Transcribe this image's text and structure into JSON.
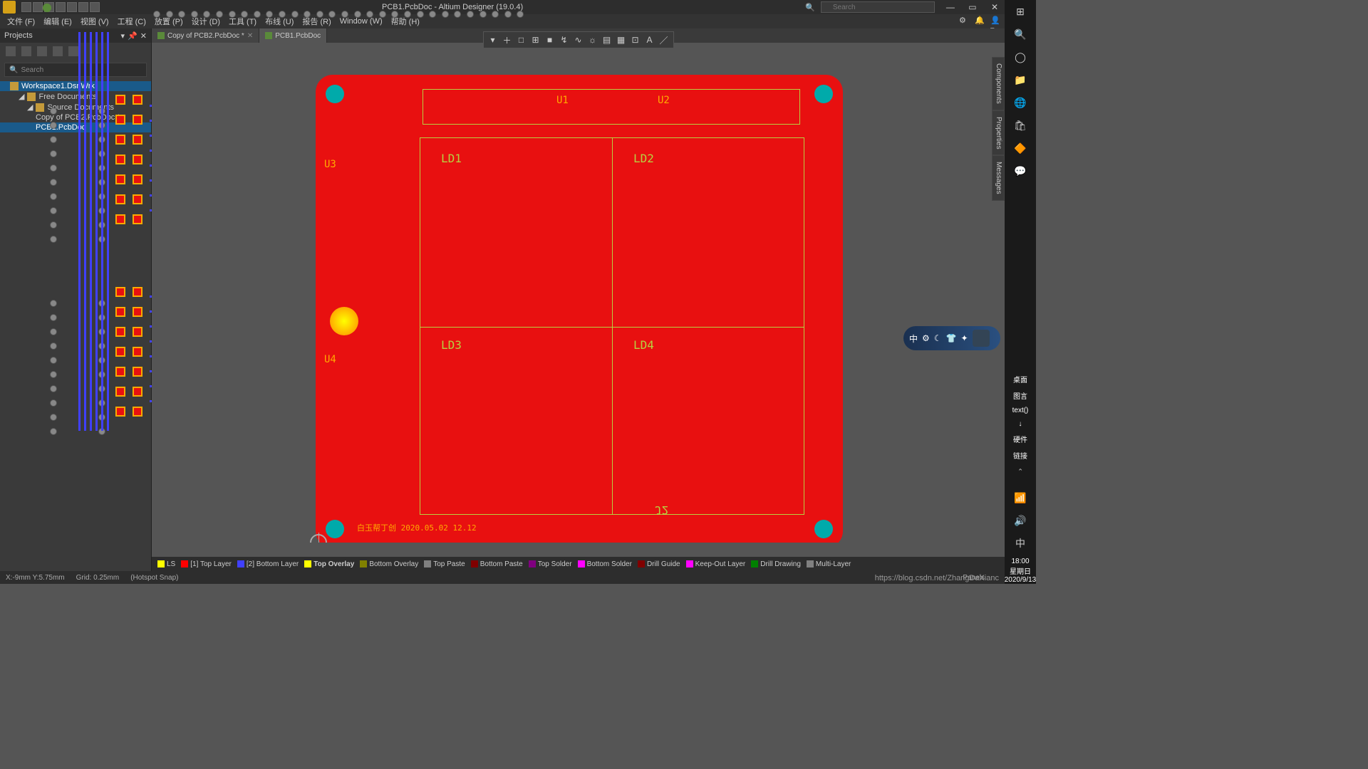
{
  "title": "PCB1.PcbDoc - Altium Designer (19.0.4)",
  "search_placeholder": "Search",
  "menu": [
    "文件 (F)",
    "编辑 (E)",
    "视图 (V)",
    "工程 (C)",
    "放置 (P)",
    "设计 (D)",
    "工具 (T)",
    "布线 (U)",
    "报告 (R)",
    "Window (W)",
    "帮助 (H)"
  ],
  "sidebar": {
    "title": "Projects",
    "search_placeholder": "Search",
    "tree": {
      "workspace": "Workspace1.DsnWrk",
      "group": "Free Documents",
      "folder": "Source Documents",
      "doc1": "Copy of PCB2.PcbDoc *",
      "doc2": "PCB1.PcbDoc"
    }
  },
  "tabs": [
    {
      "label": "Copy of PCB2.PcbDoc *",
      "active": false
    },
    {
      "label": "PCB1.PcbDoc",
      "active": true
    }
  ],
  "float_tools": [
    "▾",
    "＋",
    "□",
    "⊞",
    "■",
    "↯",
    "∿",
    "☼",
    "▤",
    "▦",
    "⊡",
    "A",
    "／"
  ],
  "designators": {
    "U1": "U1",
    "U2": "U2",
    "U3": "U3",
    "U4": "U4",
    "LD1": "LD1",
    "LD2": "LD2",
    "LD3": "LD3",
    "LD4": "LD4",
    "J2": "J2"
  },
  "board_text": "白玉帮丁创 2020.05.02 12.12",
  "layers": [
    {
      "name": "LS",
      "color": "#ffff00"
    },
    {
      "name": "[1] Top Layer",
      "color": "#ff0000"
    },
    {
      "name": "[2] Bottom Layer",
      "color": "#4040ff"
    },
    {
      "name": "Top Overlay",
      "color": "#ffff00",
      "active": true
    },
    {
      "name": "Bottom Overlay",
      "color": "#808000"
    },
    {
      "name": "Top Paste",
      "color": "#808080"
    },
    {
      "name": "Bottom Paste",
      "color": "#800000"
    },
    {
      "name": "Top Solder",
      "color": "#800080"
    },
    {
      "name": "Bottom Solder",
      "color": "#ff00ff"
    },
    {
      "name": "Drill Guide",
      "color": "#800000"
    },
    {
      "name": "Keep-Out Layer",
      "color": "#ff00ff"
    },
    {
      "name": "Drill Drawing",
      "color": "#008000"
    },
    {
      "name": "Multi-Layer",
      "color": "#808080"
    }
  ],
  "status": {
    "coords": "X:-9mm Y:5.75mm",
    "grid": "Grid: 0.25mm",
    "snap": "(Hotspot Snap)"
  },
  "right_straps": [
    "Components",
    "Properties",
    "Messages"
  ],
  "panels_btn": "Panels",
  "watermark": "https://blog.csdn.net/ZhangDaXianc",
  "ime": [
    "中",
    "⚙",
    "☾",
    "👕",
    "✦"
  ],
  "taskbar": {
    "labels": [
      "桌面",
      "图言",
      "text()",
      "↓",
      "硬件",
      "链接"
    ],
    "clock": [
      "18:00",
      "星期日",
      "2020/9/13"
    ]
  }
}
